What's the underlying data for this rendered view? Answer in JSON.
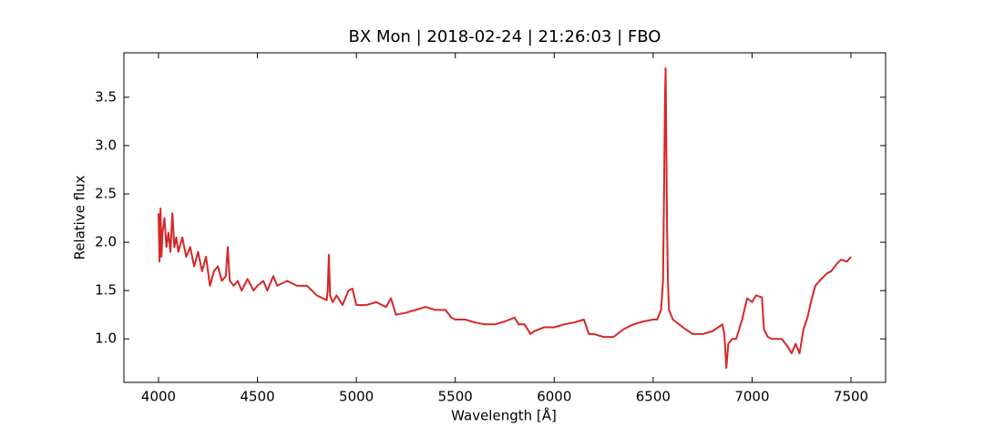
{
  "chart_data": {
    "type": "line",
    "title": "BX Mon | 2018-02-24 | 21:26:03 | FBO",
    "xlabel": "Wavelength [Å]",
    "ylabel": "Relative flux",
    "xlim": [
      3825,
      7675
    ],
    "ylim": [
      0.55,
      3.96
    ],
    "xticks": [
      4000,
      4500,
      5000,
      5500,
      6000,
      6500,
      7000,
      7500
    ],
    "yticks": [
      {
        "value": 1,
        "label": "1.0"
      },
      1.5,
      {
        "value": 2,
        "label": "2.0"
      },
      2.5,
      {
        "value": 3,
        "label": "3.0"
      },
      3.5
    ],
    "grid": false,
    "x": [
      4000,
      4005,
      4010,
      4015,
      4020,
      4030,
      4040,
      4050,
      4060,
      4070,
      4080,
      4090,
      4100,
      4120,
      4140,
      4160,
      4180,
      4200,
      4220,
      4240,
      4260,
      4280,
      4300,
      4320,
      4340,
      4350,
      4360,
      4380,
      4400,
      4420,
      4450,
      4480,
      4500,
      4530,
      4550,
      4580,
      4600,
      4650,
      4700,
      4750,
      4800,
      4830,
      4850,
      4855,
      4861,
      4867,
      4880,
      4900,
      4930,
      4960,
      4980,
      5000,
      5050,
      5100,
      5150,
      5175,
      5200,
      5250,
      5300,
      5350,
      5400,
      5450,
      5480,
      5500,
      5550,
      5600,
      5650,
      5700,
      5750,
      5800,
      5820,
      5850,
      5880,
      5900,
      5950,
      6000,
      6050,
      6100,
      6150,
      6175,
      6200,
      6250,
      6300,
      6350,
      6400,
      6450,
      6500,
      6520,
      6540,
      6550,
      6555,
      6560,
      6563,
      6566,
      6570,
      6575,
      6580,
      6600,
      6650,
      6700,
      6750,
      6800,
      6850,
      6860,
      6870,
      6880,
      6900,
      6920,
      6950,
      6975,
      7000,
      7020,
      7050,
      7060,
      7080,
      7100,
      7150,
      7180,
      7200,
      7220,
      7240,
      7260,
      7280,
      7300,
      7320,
      7350,
      7380,
      7400,
      7430,
      7450,
      7480,
      7500
    ],
    "series": [
      {
        "name": "BX Mon",
        "color": "#d62728",
        "values": [
          2.3,
          1.8,
          2.35,
          1.85,
          2.1,
          2.25,
          1.95,
          2.1,
          1.9,
          2.3,
          1.95,
          2.05,
          1.9,
          2.05,
          1.85,
          1.95,
          1.75,
          1.9,
          1.7,
          1.85,
          1.55,
          1.7,
          1.75,
          1.6,
          1.65,
          1.95,
          1.6,
          1.55,
          1.6,
          1.5,
          1.62,
          1.5,
          1.55,
          1.6,
          1.5,
          1.65,
          1.55,
          1.6,
          1.55,
          1.55,
          1.45,
          1.42,
          1.4,
          1.5,
          1.87,
          1.45,
          1.38,
          1.45,
          1.35,
          1.5,
          1.52,
          1.35,
          1.35,
          1.38,
          1.33,
          1.42,
          1.25,
          1.27,
          1.3,
          1.33,
          1.3,
          1.3,
          1.22,
          1.2,
          1.2,
          1.17,
          1.15,
          1.15,
          1.18,
          1.22,
          1.15,
          1.15,
          1.05,
          1.08,
          1.12,
          1.12,
          1.15,
          1.17,
          1.2,
          1.05,
          1.05,
          1.02,
          1.02,
          1.1,
          1.15,
          1.18,
          1.2,
          1.2,
          1.3,
          1.6,
          2.5,
          3.5,
          3.8,
          3.2,
          2.2,
          1.6,
          1.3,
          1.2,
          1.12,
          1.05,
          1.05,
          1.08,
          1.15,
          1.05,
          0.7,
          0.95,
          1.0,
          1.0,
          1.2,
          1.42,
          1.38,
          1.45,
          1.43,
          1.1,
          1.02,
          1.0,
          1.0,
          0.92,
          0.85,
          0.95,
          0.85,
          1.1,
          1.22,
          1.4,
          1.55,
          1.62,
          1.68,
          1.7,
          1.78,
          1.82,
          1.8,
          1.85
        ]
      }
    ]
  }
}
